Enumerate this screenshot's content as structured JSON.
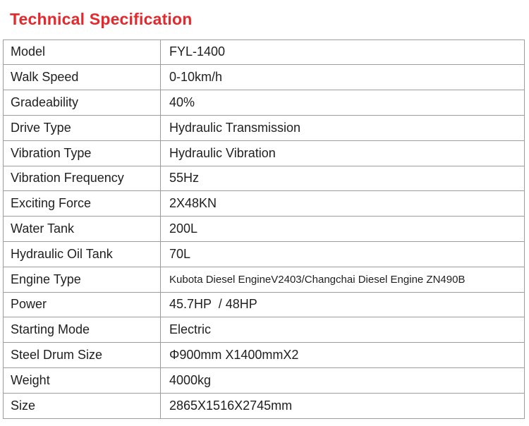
{
  "page": {
    "title": "Technical Specification",
    "title_color": "#e5282c",
    "border_color": "#9c9c9c",
    "text_color": "#1f1f1f"
  },
  "table": {
    "rows": [
      {
        "label": "Model",
        "value": "FYL-1400"
      },
      {
        "label": "Walk Speed",
        "value": "0-10km/h"
      },
      {
        "label": "Gradeability",
        "value": "40%"
      },
      {
        "label": "Drive Type",
        "value": "Hydraulic Transmission"
      },
      {
        "label": "Vibration Type",
        "value": "Hydraulic Vibration"
      },
      {
        "label": "Vibration Frequency",
        "value": "55Hz"
      },
      {
        "label": "Exciting Force",
        "value": "2X48KN"
      },
      {
        "label": "Water Tank",
        "value": "200L"
      },
      {
        "label": "Hydraulic Oil Tank",
        "value": "70L"
      },
      {
        "label": "Engine Type",
        "value": "Kubota Diesel EngineV2403/Changchai Diesel Engine ZN490B"
      },
      {
        "label": "Power",
        "value": "45.7HP  / 48HP"
      },
      {
        "label": "Starting Mode",
        "value": "Electric"
      },
      {
        "label": "Steel Drum Size",
        "value": "Φ900mm X1400mmX2"
      },
      {
        "label": "Weight",
        "value": "4000kg"
      },
      {
        "label": "Size",
        "value": "2865X1516X2745mm"
      }
    ]
  }
}
